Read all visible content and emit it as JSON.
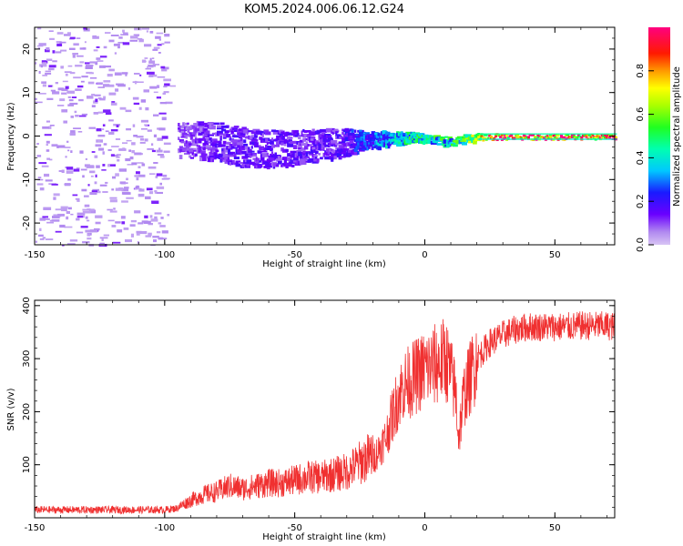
{
  "title": "KOM5.2024.006.06.12.G24",
  "colors": {
    "snr_line": "#f03030",
    "heat_low": "#c8a8f0",
    "heat_mid": "#6a00ff",
    "frame": "#000000"
  },
  "chart_data": [
    {
      "type": "heatmap",
      "xlabel": "Height of straight line (km)",
      "ylabel": "Frequency (Hz)",
      "xlim": [
        -150,
        73
      ],
      "ylim": [
        -25,
        25
      ],
      "xticks": [
        "-150",
        "-100",
        "-50",
        "0",
        "50"
      ],
      "yticks": [
        "-20",
        "-10",
        "0",
        "10",
        "20"
      ],
      "colorbar": {
        "label": "Normalized spectral amplitude",
        "range": [
          0,
          1
        ],
        "ticks": [
          "0.0",
          "0.2",
          "0.4",
          "0.6",
          "0.8"
        ],
        "colormap": "rainbow (violet-blue-cyan-green-yellow-red-magenta)"
      },
      "signal_band": [
        {
          "x": -95,
          "f_center": -0.5,
          "spread": 4.0,
          "amp": 0.1
        },
        {
          "x": -80,
          "f_center": -1.0,
          "spread": 4.5,
          "amp": 0.15
        },
        {
          "x": -65,
          "f_center": -3.0,
          "spread": 4.5,
          "amp": 0.15
        },
        {
          "x": -50,
          "f_center": -2.5,
          "spread": 4.0,
          "amp": 0.15
        },
        {
          "x": -35,
          "f_center": -1.5,
          "spread": 3.5,
          "amp": 0.15
        },
        {
          "x": -20,
          "f_center": -0.5,
          "spread": 2.0,
          "amp": 0.3
        },
        {
          "x": -5,
          "f_center": 0.0,
          "spread": 1.0,
          "amp": 0.45
        },
        {
          "x": 10,
          "f_center": -1.0,
          "spread": 1.2,
          "amp": 0.45
        },
        {
          "x": 20,
          "f_center": 0.0,
          "spread": 0.8,
          "amp": 0.7
        },
        {
          "x": 35,
          "f_center": 0.0,
          "spread": 0.6,
          "amp": 0.95
        },
        {
          "x": 55,
          "f_center": 0.0,
          "spread": 0.6,
          "amp": 0.95
        },
        {
          "x": 73,
          "f_center": 0.0,
          "spread": 0.6,
          "amp": 0.95
        }
      ]
    },
    {
      "type": "line",
      "xlabel": "Height of straight line (km)",
      "ylabel": "SNR (v/v)",
      "xlim": [
        -150,
        73
      ],
      "ylim": [
        0,
        410
      ],
      "xticks": [
        "-150",
        "-100",
        "-50",
        "0",
        "50"
      ],
      "yticks": [
        "100",
        "200",
        "300",
        "400"
      ],
      "series": [
        {
          "x": [
            -150,
            -140,
            -130,
            -120,
            -110,
            -100,
            -95,
            -90,
            -85,
            -80,
            -75,
            -70,
            -65,
            -60,
            -55,
            -50,
            -45,
            -40,
            -35,
            -30,
            -25,
            -20,
            -15,
            -12,
            -10,
            -8,
            -5,
            0,
            5,
            8,
            10,
            12,
            13,
            15,
            20,
            25,
            30,
            35,
            40,
            45,
            50,
            55,
            60,
            65,
            70,
            73
          ],
          "y": [
            15,
            15,
            15,
            15,
            15,
            15,
            18,
            30,
            40,
            45,
            55,
            50,
            55,
            60,
            60,
            65,
            70,
            70,
            75,
            80,
            95,
            110,
            150,
            200,
            230,
            250,
            260,
            280,
            290,
            300,
            270,
            230,
            150,
            230,
            300,
            330,
            345,
            355,
            360,
            360,
            360,
            360,
            362,
            362,
            362,
            360
          ]
        }
      ]
    }
  ]
}
